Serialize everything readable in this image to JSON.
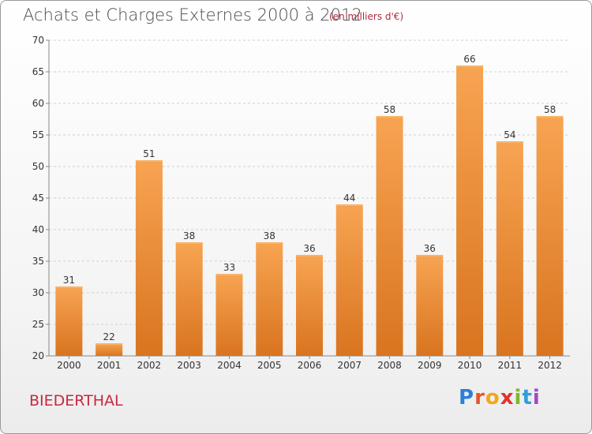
{
  "header": {
    "title": "Achats et Charges Externes 2000 à 2012",
    "subtitle": "(en milliers d'€)"
  },
  "footer": {
    "commune": "BIEDERTHAL",
    "brand": "Proxiti"
  },
  "colors": {
    "bar_light": "#f7a452",
    "bar_dark": "#d9741f",
    "grid": "#cfcfcf",
    "title": "#4a4a4a",
    "accent": "#c8283f"
  },
  "chart_data": {
    "type": "bar",
    "categories": [
      "2000",
      "2001",
      "2002",
      "2003",
      "2004",
      "2005",
      "2006",
      "2007",
      "2008",
      "2009",
      "2010",
      "2011",
      "2012"
    ],
    "values": [
      31,
      22,
      51,
      38,
      33,
      38,
      36,
      44,
      58,
      36,
      66,
      54,
      58
    ],
    "ylim": [
      20,
      70
    ],
    "yticks": [
      20,
      25,
      30,
      35,
      40,
      45,
      50,
      55,
      60,
      65,
      70
    ],
    "grid": true,
    "legend": "none"
  }
}
